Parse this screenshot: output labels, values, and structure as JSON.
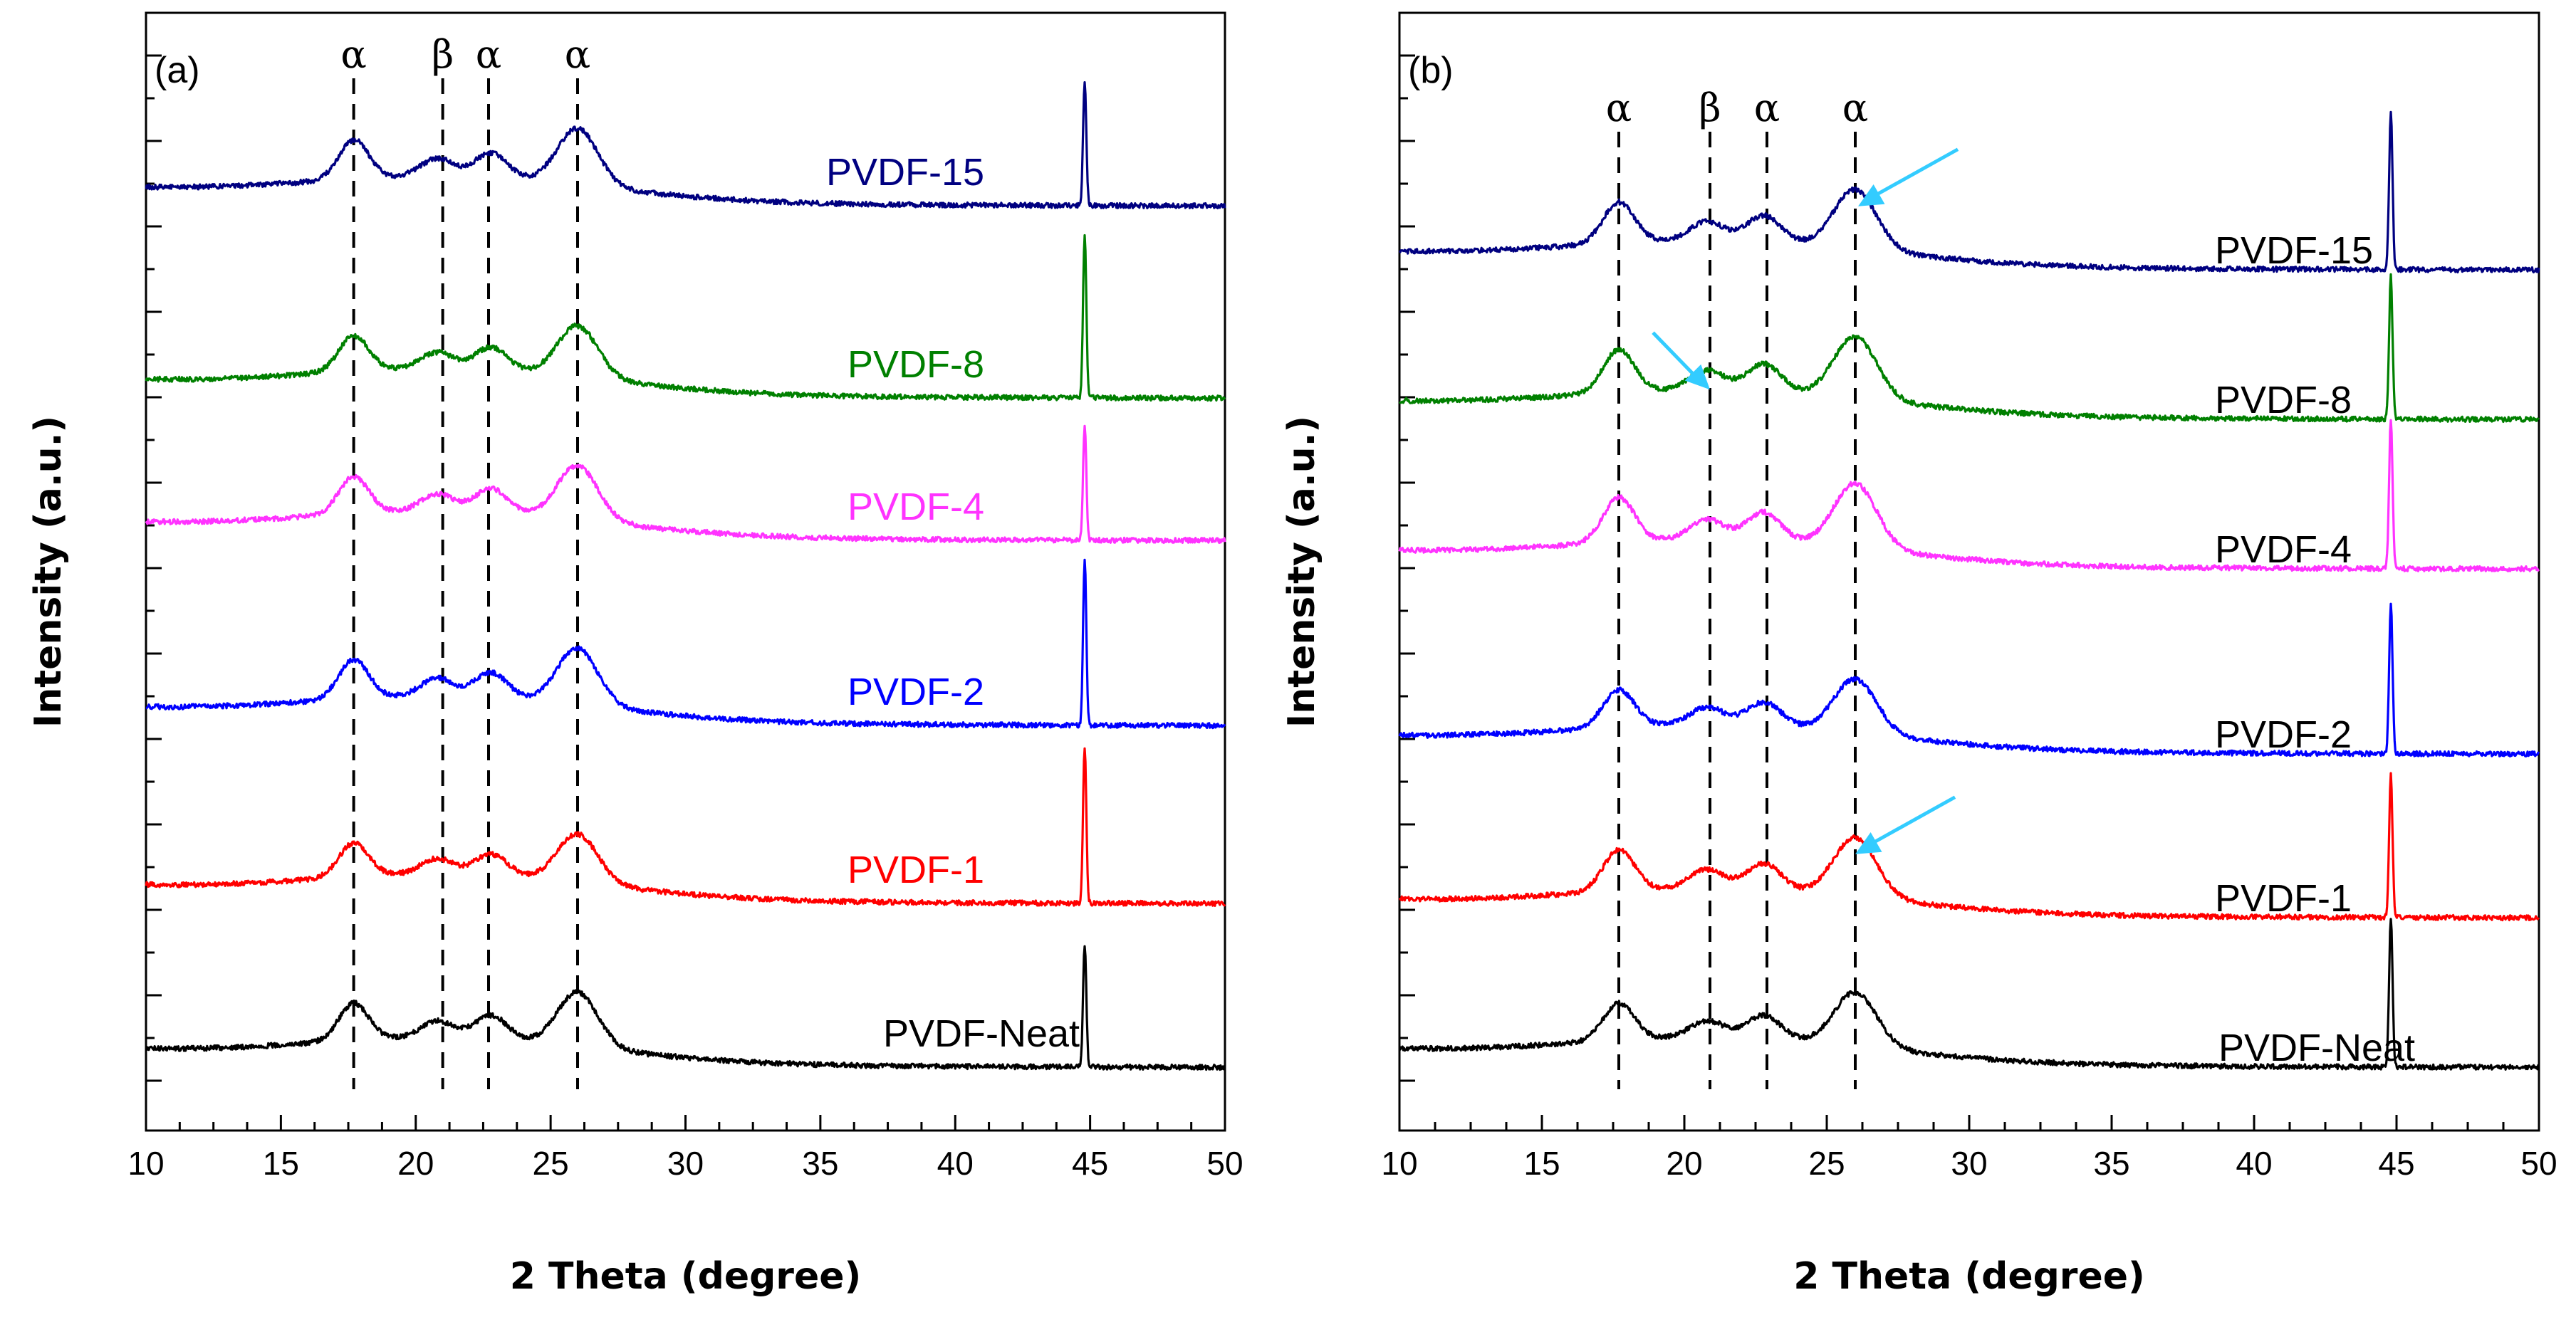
{
  "chart_data": [
    {
      "type": "line",
      "panel_label": "(a)",
      "xlabel": "2 Theta (degree)",
      "ylabel": "Intensity (a.u.)",
      "xlim": [
        10,
        50
      ],
      "xticks": [
        10,
        15,
        20,
        25,
        30,
        35,
        40,
        45,
        50
      ],
      "xtick_labels": [
        "10",
        "15",
        "20",
        "25",
        "30",
        "35",
        "40",
        "45",
        "50"
      ],
      "y_tick_labels_shown": false,
      "phase_markers": [
        {
          "x": 17.7,
          "symbol": "α"
        },
        {
          "x": 21.0,
          "symbol": "β"
        },
        {
          "x": 22.7,
          "symbol": "α"
        },
        {
          "x": 26.0,
          "symbol": "α"
        }
      ],
      "series": [
        {
          "name": "PVDF-Neat",
          "color": "#000000",
          "offset": 0,
          "peak_scale": 1.0,
          "sharp_peak": 170
        },
        {
          "name": "PVDF-1",
          "color": "#ff0000",
          "offset": 230,
          "peak_scale": 0.9,
          "sharp_peak": 220
        },
        {
          "name": "PVDF-2",
          "color": "#0000ff",
          "offset": 480,
          "peak_scale": 1.05,
          "sharp_peak": 230
        },
        {
          "name": "PVDF-4",
          "color": "#ff33ff",
          "offset": 740,
          "peak_scale": 1.0,
          "sharp_peak": 160
        },
        {
          "name": "PVDF-8",
          "color": "#008000",
          "offset": 940,
          "peak_scale": 0.95,
          "sharp_peak": 230
        },
        {
          "name": "PVDF-15",
          "color": "#000080",
          "offset": 1210,
          "peak_scale": 1.05,
          "sharp_peak": 170
        }
      ]
    },
    {
      "type": "line",
      "panel_label": "(b)",
      "xlabel": "2 Theta (degree)",
      "ylabel": "Intensity (a.u.)",
      "xlim": [
        10,
        50
      ],
      "xticks": [
        10,
        15,
        20,
        25,
        30,
        35,
        40,
        45,
        50
      ],
      "xtick_labels": [
        "10",
        "15",
        "20",
        "25",
        "30",
        "35",
        "40",
        "45",
        "50"
      ],
      "y_tick_labels_shown": false,
      "phase_markers": [
        {
          "x": 17.7,
          "symbol": "α"
        },
        {
          "x": 20.9,
          "symbol": "β"
        },
        {
          "x": 22.9,
          "symbol": "α"
        },
        {
          "x": 26.0,
          "symbol": "α"
        }
      ],
      "annotations": [
        {
          "type": "arrow",
          "color": "#33ccff",
          "target_series": "PVDF-15",
          "x": 26.1
        },
        {
          "type": "arrow",
          "color": "#33ccff",
          "target_series": "PVDF-8",
          "x": 20.9
        },
        {
          "type": "arrow",
          "color": "#33ccff",
          "target_series": "PVDF-1",
          "x": 26.0
        }
      ],
      "series": [
        {
          "name": "PVDF-Neat",
          "color": "#000000",
          "offset": 0,
          "peak_scale": 1.0,
          "sharp_peak": 210
        },
        {
          "name": "PVDF-1",
          "color": "#ff0000",
          "offset": 210,
          "peak_scale": 1.1,
          "sharp_peak": 200
        },
        {
          "name": "PVDF-2",
          "color": "#0000ff",
          "offset": 440,
          "peak_scale": 1.0,
          "sharp_peak": 210
        },
        {
          "name": "PVDF-4",
          "color": "#ff33ff",
          "offset": 700,
          "peak_scale": 1.2,
          "sharp_peak": 210
        },
        {
          "name": "PVDF-8",
          "color": "#008000",
          "offset": 910,
          "peak_scale": 1.15,
          "sharp_peak": 200
        },
        {
          "name": "PVDF-15",
          "color": "#000080",
          "offset": 1120,
          "peak_scale": 1.1,
          "sharp_peak": 220
        }
      ]
    }
  ]
}
